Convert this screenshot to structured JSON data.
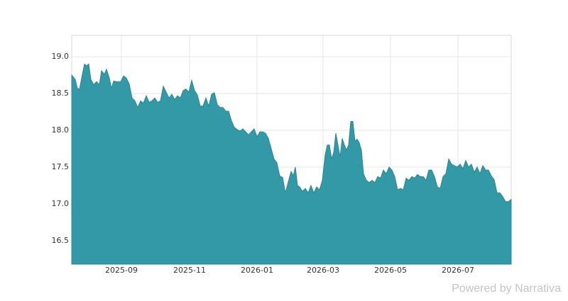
{
  "chart_data": {
    "type": "area",
    "color": "#3399a6",
    "line_color": "#2b8894",
    "grid": true,
    "footer": "Powered by Narrativa",
    "x": [
      0,
      5,
      8,
      11,
      15,
      18,
      21,
      24,
      27,
      31,
      35,
      39,
      42,
      46,
      49,
      53,
      56,
      59,
      64,
      69,
      73,
      77,
      81,
      85,
      89,
      93,
      97,
      101,
      105,
      109,
      113,
      117,
      121,
      125,
      129,
      133,
      137,
      141,
      145,
      149,
      153,
      157,
      161,
      165,
      169,
      173,
      177,
      181,
      185,
      189,
      193,
      197,
      201,
      205,
      209,
      213,
      217,
      221,
      225,
      229,
      233,
      237,
      241,
      245,
      249,
      253,
      257,
      261,
      265,
      269,
      273,
      277,
      281,
      285,
      289,
      293,
      297,
      301,
      305,
      309,
      312,
      315,
      318,
      321,
      325,
      329,
      333,
      337,
      341,
      345,
      349,
      353,
      357,
      360,
      363,
      366,
      369,
      372,
      375,
      378,
      381,
      384,
      387,
      390,
      393,
      396,
      399,
      402,
      405,
      408,
      411,
      415,
      419,
      423,
      427,
      431,
      435,
      439,
      443,
      447,
      451,
      455,
      459,
      463,
      467,
      471,
      475,
      479,
      483,
      487,
      491,
      495,
      499,
      503,
      507,
      511,
      515,
      519,
      523,
      527,
      531,
      535,
      539,
      543,
      547,
      551,
      555,
      559,
      563,
      567,
      571,
      575,
      579,
      583,
      587,
      591,
      595,
      599,
      603,
      607,
      611,
      615,
      619
    ],
    "values": [
      18.75,
      18.69,
      18.57,
      18.56,
      18.76,
      18.9,
      18.88,
      18.9,
      18.69,
      18.62,
      18.66,
      18.62,
      18.81,
      18.76,
      18.83,
      18.71,
      18.57,
      18.67,
      18.66,
      18.66,
      18.74,
      18.71,
      18.63,
      18.44,
      18.4,
      18.31,
      18.4,
      18.37,
      18.47,
      18.38,
      18.4,
      18.44,
      18.38,
      18.4,
      18.6,
      18.52,
      18.44,
      18.49,
      18.42,
      18.47,
      18.44,
      18.54,
      18.56,
      18.52,
      18.68,
      18.54,
      18.48,
      18.33,
      18.33,
      18.44,
      18.33,
      18.49,
      18.51,
      18.35,
      18.31,
      18.31,
      18.26,
      18.26,
      18.13,
      18.04,
      18.01,
      17.99,
      18.02,
      17.98,
      17.94,
      17.98,
      18.02,
      17.91,
      17.98,
      17.98,
      17.96,
      17.89,
      17.75,
      17.61,
      17.56,
      17.38,
      17.36,
      17.15,
      17.3,
      17.44,
      17.38,
      17.5,
      17.25,
      17.23,
      17.17,
      17.21,
      17.15,
      17.25,
      17.15,
      17.23,
      17.19,
      17.32,
      17.67,
      17.8,
      17.8,
      17.61,
      17.7,
      17.96,
      17.8,
      17.64,
      17.89,
      17.8,
      17.73,
      17.8,
      18.12,
      18.12,
      17.85,
      17.88,
      17.83,
      17.73,
      17.41,
      17.32,
      17.29,
      17.32,
      17.29,
      17.37,
      17.35,
      17.46,
      17.41,
      17.5,
      17.46,
      17.37,
      17.19,
      17.21,
      17.19,
      17.35,
      17.32,
      17.37,
      17.35,
      17.4,
      17.37,
      17.37,
      17.32,
      17.46,
      17.46,
      17.37,
      17.23,
      17.21,
      17.37,
      17.41,
      17.61,
      17.54,
      17.52,
      17.5,
      17.54,
      17.48,
      17.59,
      17.5,
      17.54,
      17.43,
      17.5,
      17.41,
      17.52,
      17.46,
      17.46,
      17.38,
      17.33,
      17.15,
      17.15,
      17.1,
      17.03,
      17.03,
      17.06
    ],
    "xlim": [
      0,
      619
    ],
    "xticks": [
      {
        "value": 70,
        "label": "2025-09"
      },
      {
        "value": 166,
        "label": "2025-11"
      },
      {
        "value": 261,
        "label": "2026-01"
      },
      {
        "value": 354,
        "label": "2026-03"
      },
      {
        "value": 449,
        "label": "2026-05"
      },
      {
        "value": 544,
        "label": "2026-07"
      }
    ],
    "ylim": [
      16.18,
      19.29
    ],
    "yticks": [
      {
        "value": 16.5,
        "label": "16.5"
      },
      {
        "value": 17,
        "label": "17.0"
      },
      {
        "value": 17.5,
        "label": "17.5"
      },
      {
        "value": 18,
        "label": "18.0"
      },
      {
        "value": 18.5,
        "label": "18.5"
      },
      {
        "value": 19,
        "label": "19.0"
      }
    ]
  }
}
